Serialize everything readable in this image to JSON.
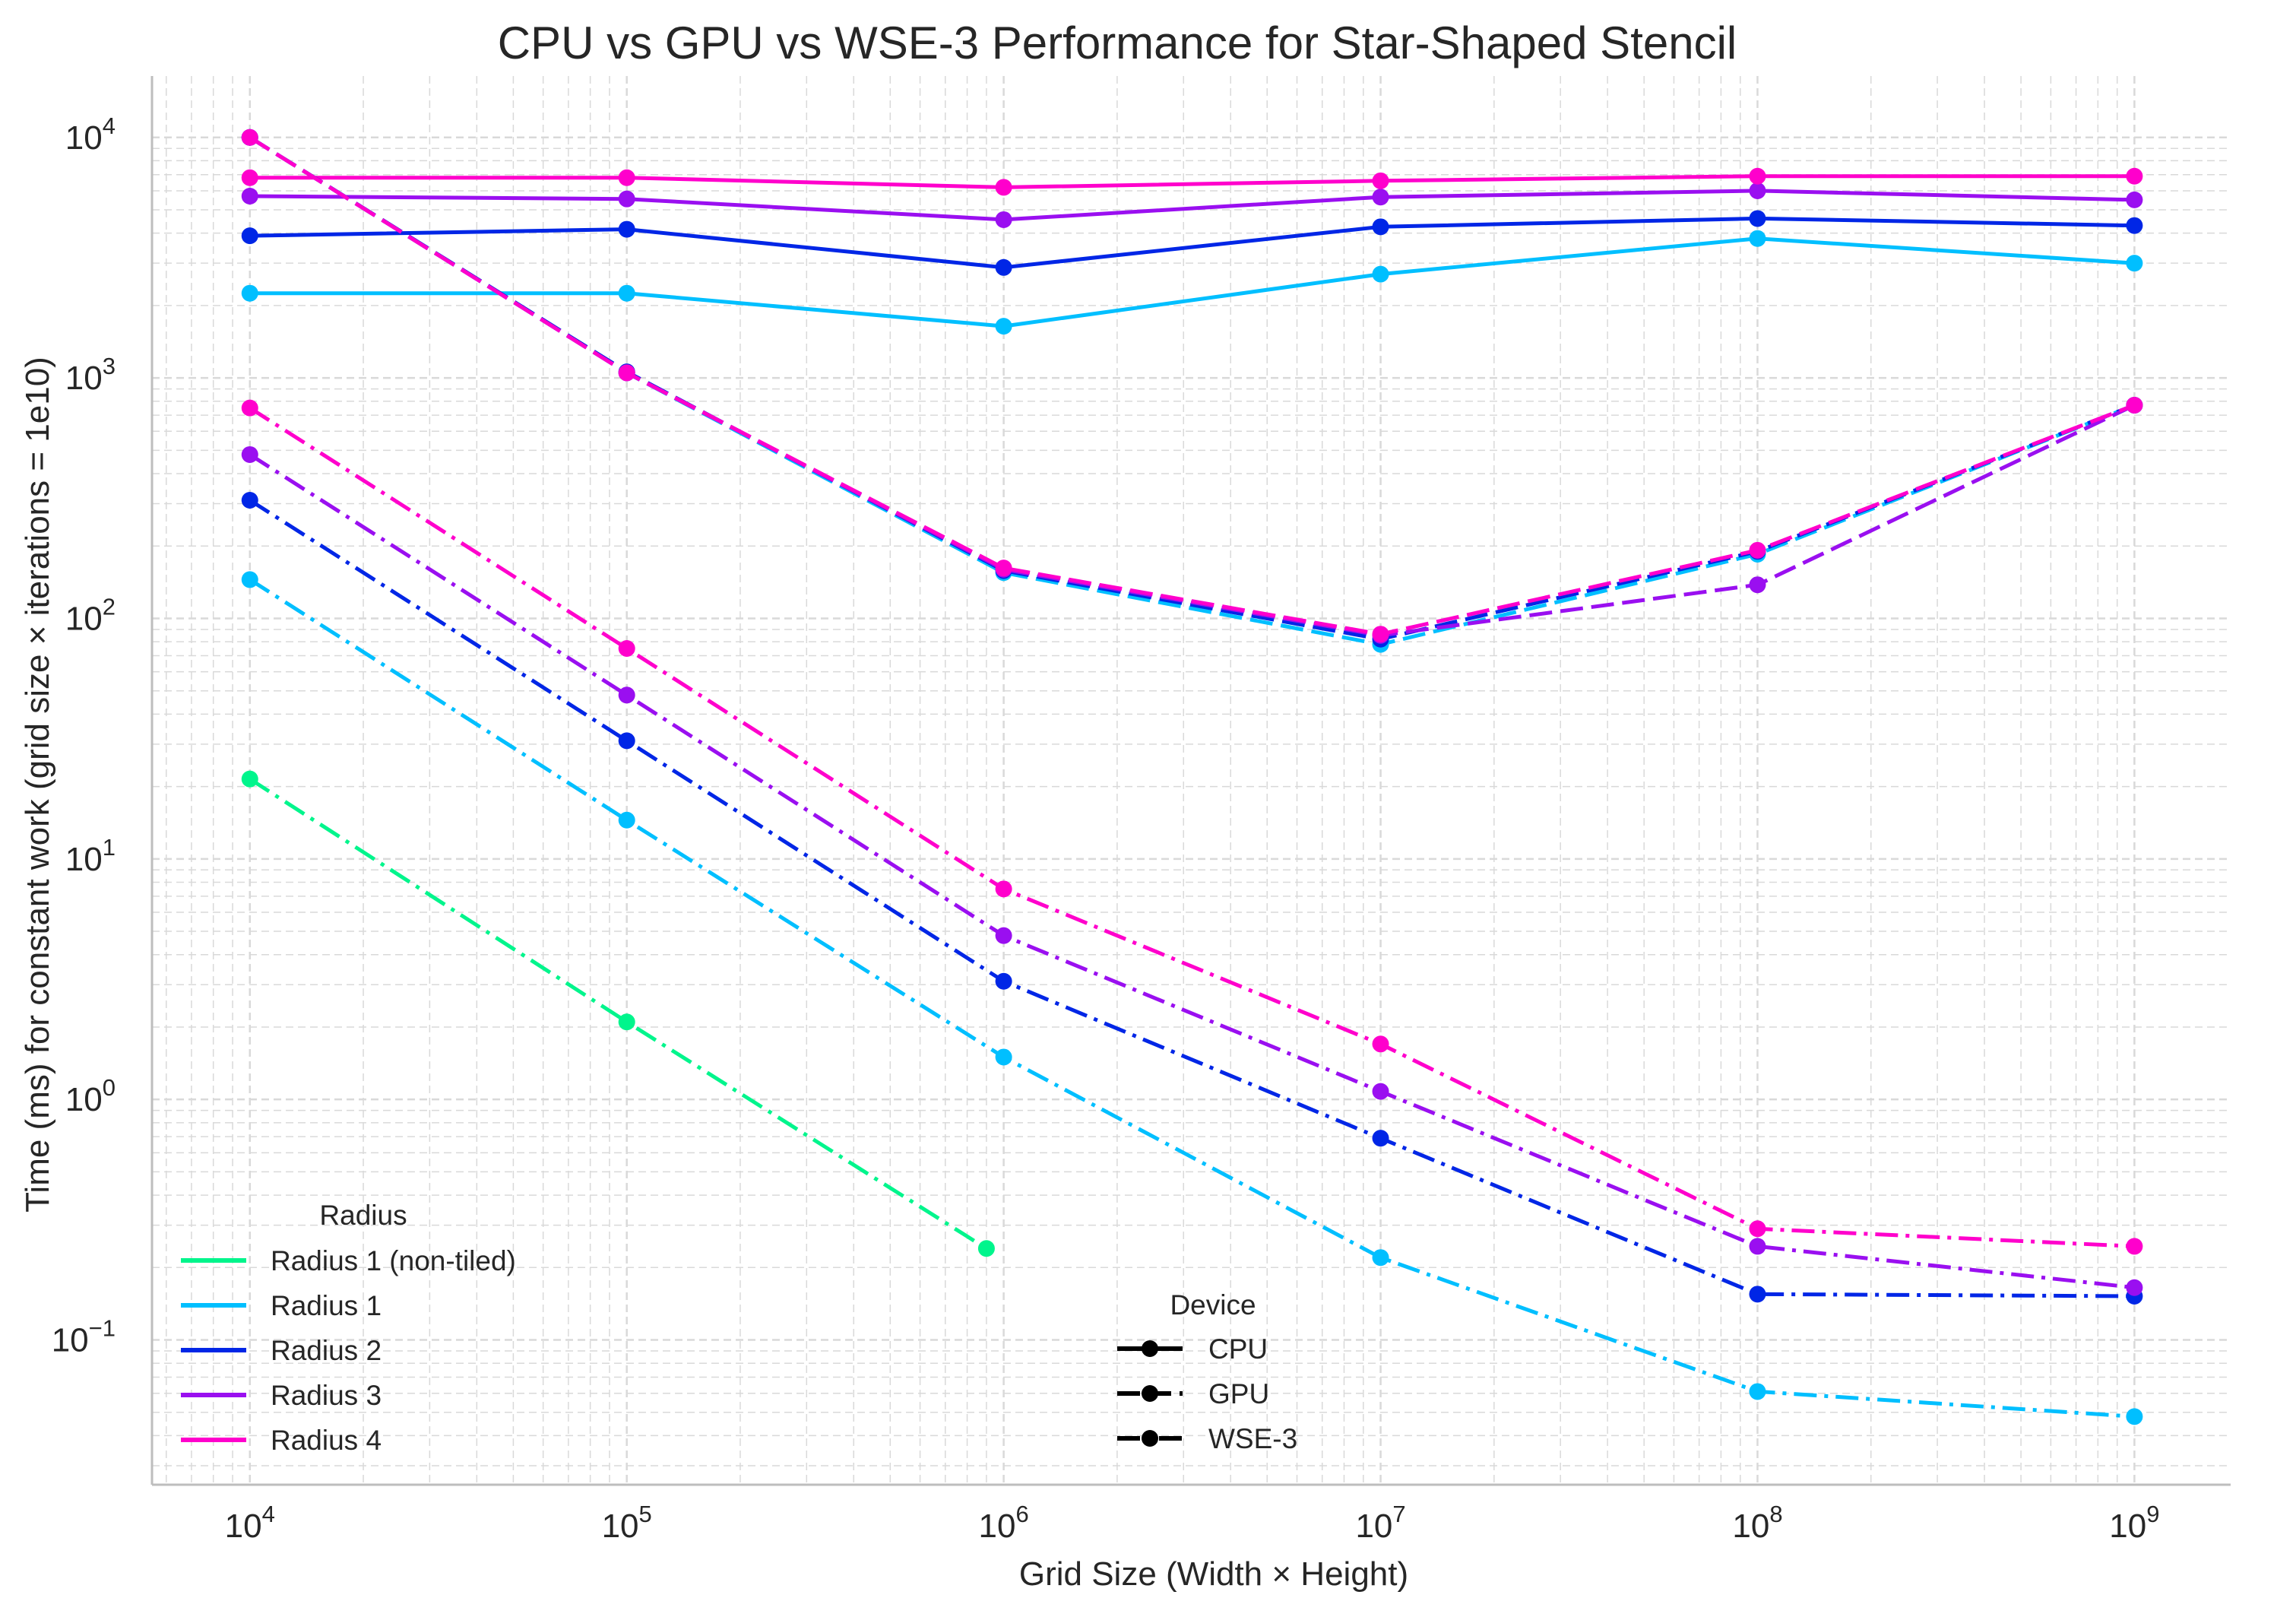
{
  "chart_data": {
    "type": "line",
    "title": "CPU vs GPU vs WSE-3 Performance for Star-Shaped Stencil",
    "xlabel": "Grid Size (Width × Height)",
    "ylabel": "Time (ms) for constant work (grid size × iterations = 1e10)",
    "xscale": "log",
    "yscale": "log",
    "xlim": [
      5500.0,
      1800000000.0
    ],
    "ylim": [
      0.025,
      18000
    ],
    "grid": true,
    "x_ticks": [
      {
        "value": 10000.0,
        "base": "10",
        "exp": "4"
      },
      {
        "value": 100000.0,
        "base": "10",
        "exp": "5"
      },
      {
        "value": 1000000.0,
        "base": "10",
        "exp": "6"
      },
      {
        "value": 10000000.0,
        "base": "10",
        "exp": "7"
      },
      {
        "value": 100000000.0,
        "base": "10",
        "exp": "8"
      },
      {
        "value": 1000000000.0,
        "base": "10",
        "exp": "9"
      }
    ],
    "y_ticks": [
      {
        "value": 0.1,
        "base": "10",
        "exp": "−1"
      },
      {
        "value": 1,
        "base": "10",
        "exp": "0"
      },
      {
        "value": 10,
        "base": "10",
        "exp": "1"
      },
      {
        "value": 100,
        "base": "10",
        "exp": "2"
      },
      {
        "value": 1000,
        "base": "10",
        "exp": "3"
      },
      {
        "value": 10000,
        "base": "10",
        "exp": "4"
      }
    ],
    "radius_legend": {
      "title": "Radius",
      "placement": "lower-left",
      "entries": [
        {
          "label": "Radius 1 (non-tiled)",
          "color": "#00f58c"
        },
        {
          "label": "Radius 1",
          "color": "#00bfff"
        },
        {
          "label": "Radius 2",
          "color": "#0026e6"
        },
        {
          "label": "Radius 3",
          "color": "#9a0ff0"
        },
        {
          "label": "Radius 4",
          "color": "#ff00cc"
        }
      ]
    },
    "device_legend": {
      "title": "Device",
      "placement": "lower-center",
      "entries": [
        {
          "label": "CPU",
          "style": "solid"
        },
        {
          "label": "GPU",
          "style": "dashed"
        },
        {
          "label": "WSE-3",
          "style": "dashdot"
        }
      ]
    },
    "series": [
      {
        "radius": "Radius 1",
        "device": "CPU",
        "color": "#00bfff",
        "style": "solid",
        "x": [
          10000.0,
          100000.0,
          1000000.0,
          10000000.0,
          100000000.0,
          1000000000.0
        ],
        "y": [
          2250,
          2250,
          1640,
          2700,
          3800,
          3000
        ]
      },
      {
        "radius": "Radius 2",
        "device": "CPU",
        "color": "#0026e6",
        "style": "solid",
        "x": [
          10000.0,
          100000.0,
          1000000.0,
          10000000.0,
          100000000.0,
          1000000000.0
        ],
        "y": [
          3900,
          4150,
          2880,
          4250,
          4600,
          4300
        ]
      },
      {
        "radius": "Radius 3",
        "device": "CPU",
        "color": "#9a0ff0",
        "style": "solid",
        "x": [
          10000.0,
          100000.0,
          1000000.0,
          10000000.0,
          100000000.0,
          1000000000.0
        ],
        "y": [
          5700,
          5550,
          4550,
          5650,
          6000,
          5500
        ]
      },
      {
        "radius": "Radius 4",
        "device": "CPU",
        "color": "#ff00cc",
        "style": "solid",
        "x": [
          10000.0,
          100000.0,
          1000000.0,
          10000000.0,
          100000000.0,
          1000000000.0
        ],
        "y": [
          6800,
          6800,
          6200,
          6600,
          6900,
          6900
        ]
      },
      {
        "radius": "Radius 1",
        "device": "GPU",
        "color": "#00bfff",
        "style": "dashed",
        "x": [
          10000.0,
          100000.0,
          1000000.0,
          10000000.0,
          100000000.0,
          1000000000.0
        ],
        "y": [
          10000,
          1050,
          155,
          78,
          185,
          770
        ]
      },
      {
        "radius": "Radius 2",
        "device": "GPU",
        "color": "#0026e6",
        "style": "dashed",
        "x": [
          10000.0,
          100000.0,
          1000000.0,
          10000000.0,
          100000000.0,
          1000000000.0
        ],
        "y": [
          10000,
          1060,
          158,
          82,
          190,
          770
        ]
      },
      {
        "radius": "Radius 3",
        "device": "GPU",
        "color": "#9a0ff0",
        "style": "dashed",
        "x": [
          10000.0,
          100000.0,
          1000000.0,
          10000000.0,
          100000000.0,
          1000000000.0
        ],
        "y": [
          10000,
          1050,
          160,
          85,
          138,
          770
        ]
      },
      {
        "radius": "Radius 4",
        "device": "GPU",
        "color": "#ff00cc",
        "style": "dashed",
        "x": [
          10000.0,
          100000.0,
          1000000.0,
          10000000.0,
          100000000.0,
          1000000000.0
        ],
        "y": [
          10000,
          1050,
          162,
          86,
          192,
          770
        ]
      },
      {
        "radius": "Radius 1 (non-tiled)",
        "device": "WSE-3",
        "color": "#00f58c",
        "style": "dashdot",
        "x": [
          10000.0,
          100000.0,
          900000.0
        ],
        "y": [
          21.5,
          2.1,
          0.24
        ]
      },
      {
        "radius": "Radius 1",
        "device": "WSE-3",
        "color": "#00bfff",
        "style": "dashdot",
        "x": [
          10000.0,
          100000.0,
          1000000.0,
          10000000.0,
          100000000.0,
          1000000000.0
        ],
        "y": [
          145,
          14.5,
          1.5,
          0.22,
          0.061,
          0.048
        ]
      },
      {
        "radius": "Radius 2",
        "device": "WSE-3",
        "color": "#0026e6",
        "style": "dashdot",
        "x": [
          10000.0,
          100000.0,
          1000000.0,
          10000000.0,
          100000000.0,
          1000000000.0
        ],
        "y": [
          310,
          31,
          3.1,
          0.69,
          0.155,
          0.152
        ]
      },
      {
        "radius": "Radius 3",
        "device": "WSE-3",
        "color": "#9a0ff0",
        "style": "dashdot",
        "x": [
          10000.0,
          100000.0,
          1000000.0,
          10000000.0,
          100000000.0,
          1000000000.0
        ],
        "y": [
          480,
          48,
          4.8,
          1.08,
          0.245,
          0.165
        ]
      },
      {
        "radius": "Radius 4",
        "device": "WSE-3",
        "color": "#ff00cc",
        "style": "dashdot",
        "x": [
          10000.0,
          100000.0,
          1000000.0,
          10000000.0,
          100000000.0,
          1000000000.0
        ],
        "y": [
          750,
          75,
          7.5,
          1.7,
          0.29,
          0.245
        ]
      }
    ]
  }
}
